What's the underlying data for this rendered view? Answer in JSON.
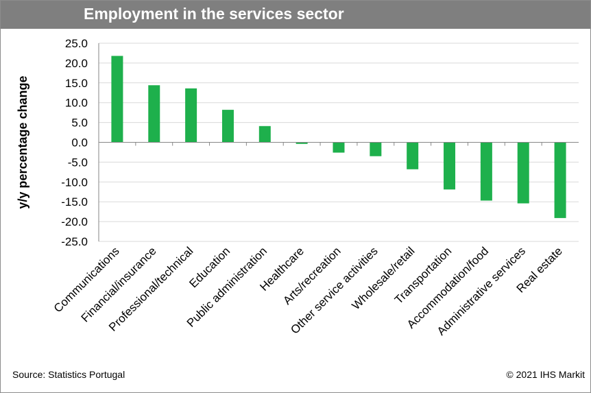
{
  "header": {
    "title": "Employment in the services sector"
  },
  "footer": {
    "source": "Source: Statistics Portugal",
    "copyright": "© 2021 IHS Markit"
  },
  "colors": {
    "bar": "#1eb04c",
    "grid": "#d9d9d9",
    "title_bg": "#7f7f7f"
  },
  "chart_data": {
    "type": "bar",
    "title": "Employment in the services sector",
    "xlabel": "",
    "ylabel": "y/y percentage change",
    "ylim": [
      -25,
      25
    ],
    "yticks": [
      25,
      20,
      15,
      10,
      5,
      0,
      -5,
      -10,
      -15,
      -20,
      -25
    ],
    "ytick_labels": [
      "25.0",
      "20.0",
      "15.0",
      "10.0",
      "5.0",
      "0.0",
      "-5.0",
      "-10.0",
      "-15.0",
      "-20.0",
      "-25.0"
    ],
    "grid": true,
    "legend": "none",
    "categories": [
      "Communications",
      "Financial/insurance",
      "Professional/technical",
      "Education",
      "Public administration",
      "Healthcare",
      "Arts/recreation",
      "Other service activities",
      "Wholesale/retail",
      "Transportation",
      "Accommodation/food",
      "Administrative services",
      "Real estate"
    ],
    "values": [
      21.8,
      14.4,
      13.6,
      8.2,
      4.1,
      -0.4,
      -2.6,
      -3.5,
      -6.8,
      -11.9,
      -14.7,
      -15.4,
      -19.1
    ]
  }
}
